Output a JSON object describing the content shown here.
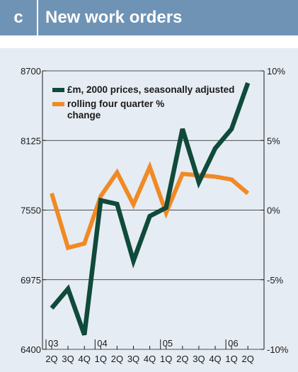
{
  "panel_label": "c",
  "chart_data": {
    "type": "line",
    "title": "New work orders",
    "categories": [
      "2Q",
      "3Q",
      "4Q",
      "1Q",
      "2Q",
      "3Q",
      "4Q",
      "1Q",
      "2Q",
      "3Q",
      "4Q",
      "1Q",
      "2Q"
    ],
    "year_labels": [
      {
        "label": "03",
        "index": 0
      },
      {
        "label": "04",
        "index": 3
      },
      {
        "label": "05",
        "index": 7
      },
      {
        "label": "06",
        "index": 11
      }
    ],
    "left_axis": {
      "ylim": [
        6400,
        8700
      ],
      "ticks": [
        8700,
        8125,
        7550,
        6975,
        6400
      ]
    },
    "right_axis": {
      "ylim": [
        -10,
        10
      ],
      "ticks": [
        "10%",
        "5%",
        "0%",
        "-5%",
        "-10%"
      ],
      "tick_values": [
        10,
        5,
        0,
        -5,
        -10
      ]
    },
    "series": [
      {
        "name": "£m, 2000 prices, seasonally adjusted",
        "axis": "left",
        "color": "#0f4a3a",
        "values": [
          6740,
          6900,
          6520,
          7630,
          7600,
          7130,
          7500,
          7570,
          8220,
          7780,
          8060,
          8220,
          8600
        ]
      },
      {
        "name": "rolling four quarter % change",
        "axis": "right",
        "color": "#f08a24",
        "values": [
          1.2,
          -2.7,
          -2.4,
          1.0,
          2.7,
          0.4,
          3.1,
          -0.2,
          2.6,
          2.5,
          2.4,
          2.2,
          1.2
        ]
      }
    ],
    "legend": [
      "£m, 2000 prices, seasonally adjusted",
      "rolling four quarter %",
      "change"
    ],
    "legend_position": "top-left",
    "grid": "horizontal"
  }
}
